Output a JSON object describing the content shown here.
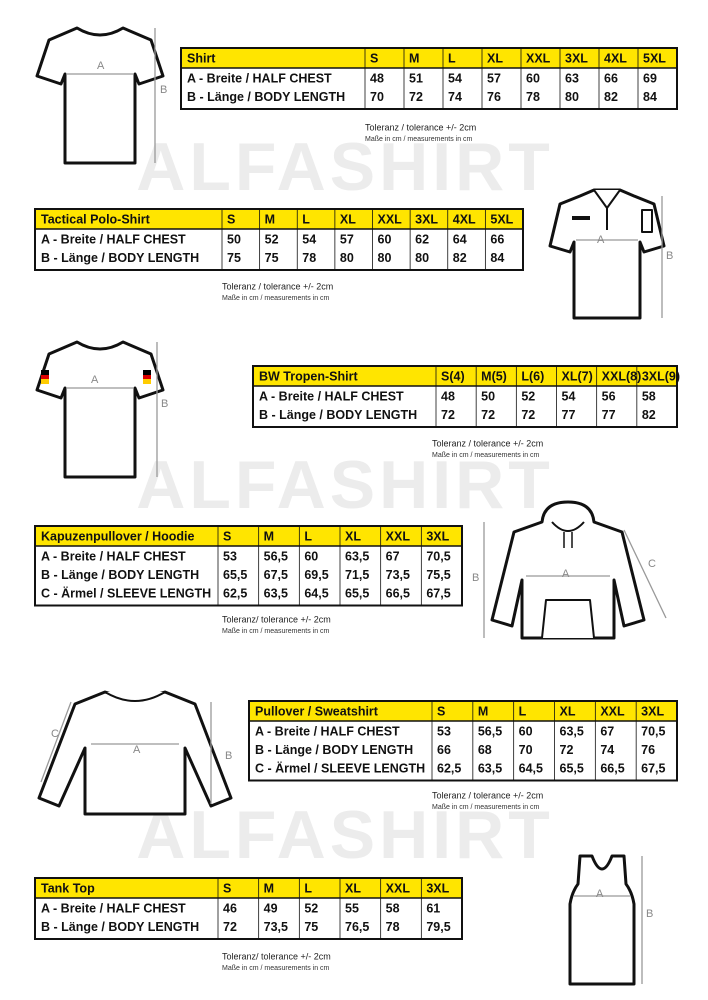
{
  "watermark": "ALFASHIRT",
  "sections": [
    {
      "title": "Shirt",
      "sizes": [
        "S",
        "M",
        "L",
        "XL",
        "XXL",
        "3XL",
        "4XL",
        "5XL"
      ],
      "rows": [
        {
          "label": "A -  Breite / HALF CHEST",
          "values": [
            "48",
            "51",
            "54",
            "57",
            "60",
            "63",
            "66",
            "69"
          ]
        },
        {
          "label": "B -  Länge / BODY LENGTH",
          "values": [
            "70",
            "72",
            "74",
            "76",
            "78",
            "80",
            "82",
            "84"
          ]
        }
      ],
      "note": [
        "Toleranz / tolerance +/- 2cm",
        "Maße in cm / measurements in cm"
      ],
      "figure_labels": [
        "A",
        "B"
      ]
    },
    {
      "title": "Tactical Polo-Shirt",
      "sizes": [
        "S",
        "M",
        "L",
        "XL",
        "XXL",
        "3XL",
        "4XL",
        "5XL"
      ],
      "rows": [
        {
          "label": "A -  Breite / HALF CHEST",
          "values": [
            "50",
            "52",
            "54",
            "57",
            "60",
            "62",
            "64",
            "66"
          ]
        },
        {
          "label": "B -  Länge / BODY LENGTH",
          "values": [
            "75",
            "75",
            "78",
            "80",
            "80",
            "80",
            "82",
            "84"
          ]
        }
      ],
      "note": [
        "Toleranz / tolerance +/- 2cm",
        "Maße in cm / measurements in cm"
      ],
      "figure_labels": [
        "A",
        "B"
      ]
    },
    {
      "title": "BW Tropen-Shirt",
      "sizes": [
        "S(4)",
        "M(5)",
        "L(6)",
        "XL(7)",
        "XXL(8)",
        "3XL(9)"
      ],
      "rows": [
        {
          "label": "A -  Breite / HALF CHEST",
          "values": [
            "48",
            "50",
            "52",
            "54",
            "56",
            "58"
          ]
        },
        {
          "label": "B -  Länge / BODY LENGTH",
          "values": [
            "72",
            "72",
            "72",
            "77",
            "77",
            "82"
          ]
        }
      ],
      "note": [
        "Toleranz / tolerance +/- 2cm",
        "Maße in cm / measurements in cm"
      ],
      "figure_labels": [
        "A",
        "B"
      ]
    },
    {
      "title": "Kapuzenpullover / Hoodie",
      "sizes": [
        "S",
        "M",
        "L",
        "XL",
        "XXL",
        "3XL"
      ],
      "rows": [
        {
          "label": "A -  Breite / HALF CHEST",
          "values": [
            "53",
            "56,5",
            "60",
            "63,5",
            "67",
            "70,5"
          ]
        },
        {
          "label": "B -  Länge / BODY LENGTH",
          "values": [
            "65,5",
            "67,5",
            "69,5",
            "71,5",
            "73,5",
            "75,5"
          ]
        },
        {
          "label": "C -  Ärmel / SLEEVE LENGTH",
          "values": [
            "62,5",
            "63,5",
            "64,5",
            "65,5",
            "66,5",
            "67,5"
          ]
        }
      ],
      "note": [
        "Toleranz/ tolerance +/- 2cm",
        "Maße in cm / measurements in cm"
      ],
      "figure_labels": [
        "A",
        "B",
        "C"
      ]
    },
    {
      "title": "Pullover / Sweatshirt",
      "sizes": [
        "S",
        "M",
        "L",
        "XL",
        "XXL",
        "3XL"
      ],
      "rows": [
        {
          "label": "A -  Breite / HALF CHEST",
          "values": [
            "53",
            "56,5",
            "60",
            "63,5",
            "67",
            "70,5"
          ]
        },
        {
          "label": "B -  Länge / BODY LENGTH",
          "values": [
            "66",
            "68",
            "70",
            "72",
            "74",
            "76"
          ]
        },
        {
          "label": "C -  Ärmel / SLEEVE LENGTH",
          "values": [
            "62,5",
            "63,5",
            "64,5",
            "65,5",
            "66,5",
            "67,5"
          ]
        }
      ],
      "note": [
        "Toleranz / tolerance +/- 2cm",
        "Maße in cm / measurements in cm"
      ],
      "figure_labels": [
        "A",
        "B",
        "C"
      ]
    },
    {
      "title": "Tank Top",
      "sizes": [
        "S",
        "M",
        "L",
        "XL",
        "XXL",
        "3XL"
      ],
      "rows": [
        {
          "label": "A -  Breite / HALF CHEST",
          "values": [
            "46",
            "49",
            "52",
            "55",
            "58",
            "61"
          ]
        },
        {
          "label": "B -  Länge / BODY LENGTH",
          "values": [
            "72",
            "73,5",
            "75",
            "76,5",
            "78",
            "79,5"
          ]
        }
      ],
      "note": [
        "Toleranz/ tolerance +/- 2cm",
        "Maße in cm / measurements in cm"
      ],
      "figure_labels": [
        "A",
        "B"
      ]
    }
  ]
}
